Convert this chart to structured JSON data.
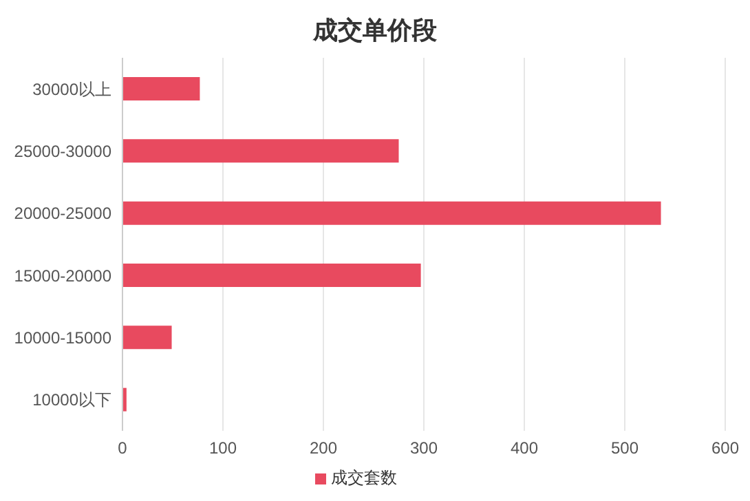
{
  "chart_data": {
    "type": "bar",
    "title": "成交单价段",
    "orientation": "horizontal",
    "categories": [
      "30000以上",
      "25000-30000",
      "20000-25000",
      "15000-20000",
      "10000-15000",
      "10000以下"
    ],
    "series": [
      {
        "name": "成交套数",
        "color": "#e84a5f",
        "values": [
          77,
          275,
          536,
          297,
          49,
          4
        ]
      }
    ],
    "xlim": [
      0,
      600
    ],
    "xticks": [
      0,
      100,
      200,
      300,
      400,
      500,
      600
    ],
    "grid": "x",
    "legend": "bottom"
  }
}
